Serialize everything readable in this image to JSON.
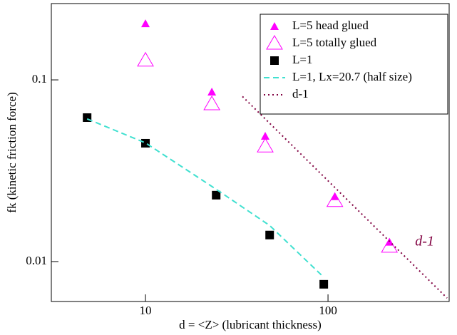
{
  "chart_data": {
    "type": "scatter",
    "xlabel": "d = <Z>  (lubricant thickness)",
    "ylabel": "fk (kinetic friction force)",
    "xscale": "log",
    "yscale": "log",
    "xlim": [
      3.05,
      461
    ],
    "ylim": [
      0.00603,
      0.263
    ],
    "xticks": [
      10,
      100
    ],
    "yticks": [
      0.01,
      0.1
    ],
    "legend": "upper right",
    "annotations": [
      {
        "text": "d-1",
        "x": 300,
        "y": 0.0128
      }
    ],
    "series": [
      {
        "name": "L=5 head glued",
        "color": "#ff00ff",
        "marker": "triangle-filled",
        "x": [
          10,
          23.1,
          45.3,
          109,
          217
        ],
        "values": [
          0.204,
          0.0858,
          0.049,
          0.0228,
          0.0128
        ]
      },
      {
        "name": "L=5 totally glued",
        "color": "#ff00ff",
        "marker": "triangle-open",
        "x": [
          10,
          23.1,
          45.3,
          109,
          217
        ],
        "values": [
          0.128,
          0.0736,
          0.0431,
          0.0216,
          0.0121
        ]
      },
      {
        "name": "L=1",
        "color": "#000000",
        "marker": "square",
        "x": [
          4.79,
          10,
          24.4,
          47.9,
          94.8
        ],
        "values": [
          0.062,
          0.0448,
          0.0232,
          0.014,
          0.0075
        ]
      },
      {
        "name": "L=1,  Lx=20.7 (half size)",
        "color": "#40e0d0",
        "marker": "dashed-line",
        "x": [
          4.79,
          10,
          24.4,
          47.9,
          94.8
        ],
        "values": [
          0.061,
          0.045,
          0.025,
          0.0158,
          0.0082
        ]
      },
      {
        "name": "d-1",
        "color": "#800040",
        "marker": "dotted-line",
        "x": [
          34,
          449
        ],
        "values": [
          0.081,
          0.0063
        ]
      }
    ]
  }
}
